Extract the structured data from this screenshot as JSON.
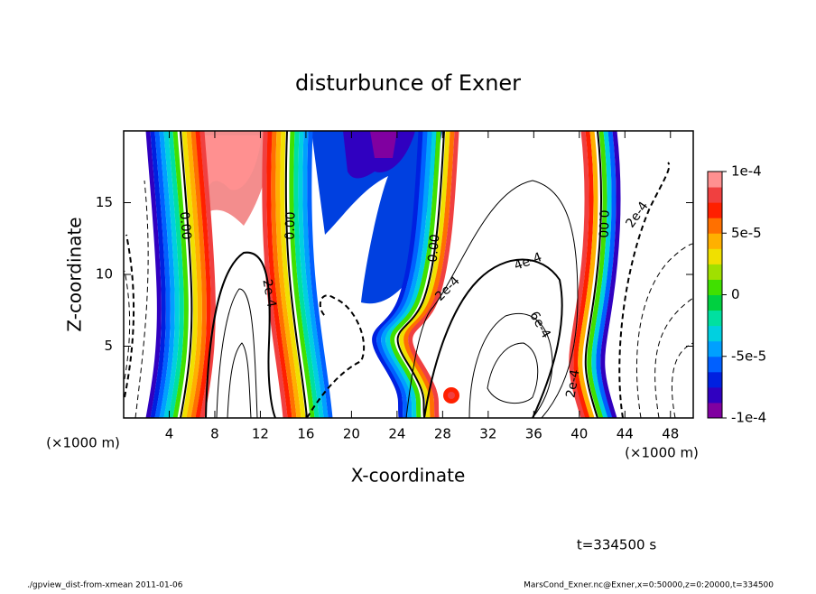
{
  "chart_data": {
    "type": "contour",
    "title": "disturbunce of Exner",
    "x_label": "X-coordinate",
    "y_label": "Z-coordinate",
    "x_unit_label": "(×1000 m)",
    "xlim": [
      0,
      50
    ],
    "xticks": [
      4,
      8,
      12,
      16,
      20,
      24,
      28,
      32,
      36,
      40,
      44,
      48
    ],
    "ylim": [
      0,
      20
    ],
    "yticks": [
      5,
      10,
      15
    ],
    "colorbar": {
      "clim": [
        -0.0001,
        0.0001
      ],
      "ticks": [
        {
          "value": 0.0001,
          "label": "1e-4"
        },
        {
          "value": 5e-05,
          "label": "5e-5"
        },
        0,
        {
          "value": -5e-05,
          "label": "-5e-5"
        },
        {
          "value": -0.0001,
          "label": "-1e-4"
        }
      ],
      "colors": [
        "#8000a0",
        "#3000c0",
        "#0020e0",
        "#0060ff",
        "#00a0ff",
        "#00d0e0",
        "#00e0a0",
        "#00d040",
        "#40e000",
        "#a0e000",
        "#f0e000",
        "#ffb000",
        "#ff7000",
        "#ff2000",
        "#f04040",
        "#ff9090"
      ]
    },
    "contour_labels": [
      "0.00",
      "0.00",
      "0.00",
      "0.00",
      "2e-4",
      "2e-4",
      "4e-4",
      "6e-4",
      "2e-4",
      "2e-4"
    ],
    "time_label": "t=334500 s",
    "footer_left": "./gpview_dist-from-xmean  2011-01-06",
    "footer_right": "MarsCond_Exner.nc@Exner,x=0:50000,z=0:20000,t=334500"
  }
}
